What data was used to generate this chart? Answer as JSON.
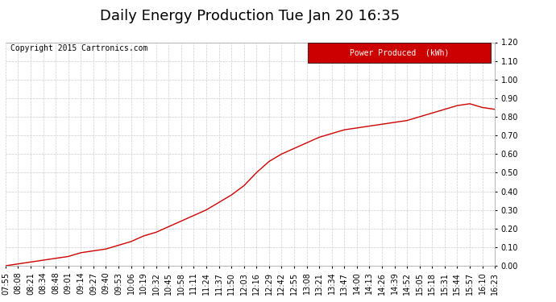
{
  "title": "Daily Energy Production Tue Jan 20 16:35",
  "copyright_text": "Copyright 2015 Cartronics.com",
  "legend_label": "Power Produced  (kWh)",
  "legend_bg": "#cc0000",
  "legend_text_color": "#ffffff",
  "line_color": "#cc0000",
  "bg_color": "#ffffff",
  "plot_bg_color": "#ffffff",
  "grid_color": "#cccccc",
  "ylim": [
    0.0,
    1.2
  ],
  "yticks": [
    0.0,
    0.1,
    0.2,
    0.3,
    0.4,
    0.5,
    0.6,
    0.7,
    0.8,
    0.9,
    1.0,
    1.1,
    1.2
  ],
  "x_labels": [
    "07:55",
    "08:08",
    "08:21",
    "08:34",
    "08:48",
    "09:01",
    "09:14",
    "09:27",
    "09:40",
    "09:53",
    "10:06",
    "10:19",
    "10:32",
    "10:45",
    "10:58",
    "11:11",
    "11:24",
    "11:37",
    "11:50",
    "12:03",
    "12:16",
    "12:29",
    "12:42",
    "12:55",
    "13:08",
    "13:21",
    "13:34",
    "13:47",
    "14:00",
    "14:13",
    "14:26",
    "14:39",
    "14:52",
    "15:05",
    "15:18",
    "15:31",
    "15:44",
    "15:57",
    "16:10",
    "16:23"
  ],
  "y_values": [
    0.0,
    0.01,
    0.02,
    0.03,
    0.04,
    0.05,
    0.07,
    0.08,
    0.09,
    0.11,
    0.13,
    0.16,
    0.18,
    0.21,
    0.24,
    0.27,
    0.3,
    0.34,
    0.38,
    0.43,
    0.5,
    0.56,
    0.6,
    0.63,
    0.66,
    0.69,
    0.71,
    0.73,
    0.74,
    0.75,
    0.76,
    0.77,
    0.78,
    0.8,
    0.82,
    0.84,
    0.86,
    0.87,
    0.85,
    0.84
  ],
  "title_fontsize": 13,
  "copyright_fontsize": 7,
  "tick_fontsize": 7,
  "legend_fontsize": 7
}
